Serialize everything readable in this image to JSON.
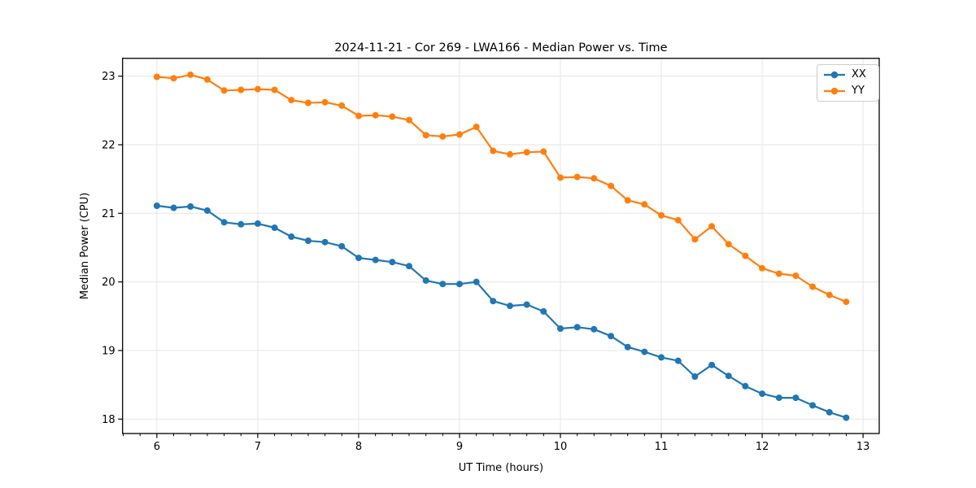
{
  "figure": {
    "background": "#ffffff",
    "title": "2024-11-21 - Cor 269 - LWA166 - Median Power vs. Time"
  },
  "chart_data": {
    "type": "line",
    "title": "2024-11-21 - Cor 269 - LWA166 - Median Power vs. Time",
    "xlabel": "UT Time (hours)",
    "ylabel": "Median Power (CPU)",
    "xlim": [
      5.66,
      13.16
    ],
    "ylim": [
      17.79,
      23.26
    ],
    "xticks": [
      6,
      7,
      8,
      9,
      10,
      11,
      12,
      13
    ],
    "yticks": [
      18,
      19,
      20,
      21,
      22,
      23
    ],
    "x_minor_tick_step": 0.166667,
    "grid": true,
    "grid_color": "#e6e6e6",
    "legend_position": "upper right",
    "x": [
      6.0,
      6.167,
      6.333,
      6.5,
      6.667,
      6.833,
      7.0,
      7.167,
      7.333,
      7.5,
      7.667,
      7.833,
      8.0,
      8.167,
      8.333,
      8.5,
      8.667,
      8.833,
      9.0,
      9.167,
      9.333,
      9.5,
      9.667,
      9.833,
      10.0,
      10.167,
      10.333,
      10.5,
      10.667,
      10.833,
      11.0,
      11.167,
      11.333,
      11.5,
      11.667,
      11.833,
      12.0,
      12.167,
      12.333,
      12.5,
      12.667,
      12.833
    ],
    "series": [
      {
        "name": "XX",
        "color": "#1f77b4",
        "values": [
          21.11,
          21.08,
          21.1,
          21.04,
          20.87,
          20.84,
          20.85,
          20.79,
          20.66,
          20.6,
          20.58,
          20.52,
          20.35,
          20.32,
          20.29,
          20.23,
          20.02,
          19.97,
          19.97,
          20.0,
          19.72,
          19.65,
          19.67,
          19.57,
          19.32,
          19.34,
          19.31,
          19.21,
          19.05,
          18.98,
          18.9,
          18.85,
          18.62,
          18.79,
          18.63,
          18.48,
          18.37,
          18.31,
          18.31,
          18.2,
          18.1,
          18.02
        ]
      },
      {
        "name": "YY",
        "color": "#ff7f0e",
        "values": [
          22.99,
          22.97,
          23.02,
          22.95,
          22.79,
          22.8,
          22.81,
          22.8,
          22.65,
          22.61,
          22.62,
          22.57,
          22.42,
          22.43,
          22.41,
          22.36,
          22.14,
          22.12,
          22.15,
          22.26,
          21.91,
          21.86,
          21.89,
          21.9,
          21.52,
          21.53,
          21.51,
          21.4,
          21.19,
          21.13,
          20.97,
          20.9,
          20.62,
          20.81,
          20.55,
          20.38,
          20.2,
          20.12,
          20.09,
          19.93,
          19.81,
          19.71
        ]
      }
    ]
  },
  "style": {
    "spine_color": "#000000",
    "tick_color": "#000000",
    "text_color": "#000000"
  }
}
